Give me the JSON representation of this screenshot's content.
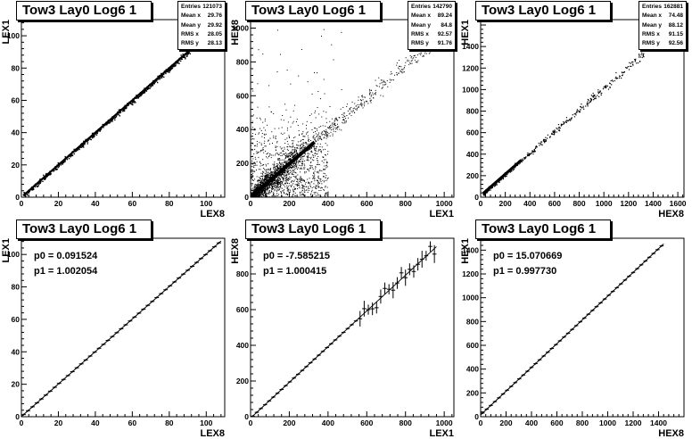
{
  "panels": [
    {
      "title": "Tow3 Lay0 Log6 1",
      "xlabel": "LEX8",
      "ylabel": "LEX1",
      "stats": [
        {
          "label": "Entries",
          "value": "121073"
        },
        {
          "label": "Mean x",
          "value": "29.76"
        },
        {
          "label": "Mean y",
          "value": "29.92"
        },
        {
          "label": "RMS x",
          "value": "28.05"
        },
        {
          "label": "RMS y",
          "value": "28.13"
        }
      ],
      "fit": []
    },
    {
      "title": "Tow3 Lay0 Log6 1",
      "xlabel": "LEX1",
      "ylabel": "HEX8",
      "stats": [
        {
          "label": "Entries",
          "value": "142790"
        },
        {
          "label": "Mean x",
          "value": "89.24"
        },
        {
          "label": "Mean y",
          "value": "84.8"
        },
        {
          "label": "RMS x",
          "value": "92.57"
        },
        {
          "label": "RMS y",
          "value": "91.76"
        }
      ],
      "fit": []
    },
    {
      "title": "Tow3 Lay0 Log6 1",
      "xlabel": "HEX8",
      "ylabel": "HEX1",
      "stats": [
        {
          "label": "Entries",
          "value": "162881"
        },
        {
          "label": "Mean x",
          "value": "74.48"
        },
        {
          "label": "Mean y",
          "value": "88.12"
        },
        {
          "label": "RMS x",
          "value": "91.15"
        },
        {
          "label": "RMS y",
          "value": "92.56"
        }
      ],
      "fit": []
    },
    {
      "title": "Tow3 Lay0 Log6 1",
      "xlabel": "LEX8",
      "ylabel": "LEX1",
      "stats": [],
      "fit": [
        {
          "label": "p0",
          "value": "0.091524"
        },
        {
          "label": "p1",
          "value": "1.002054"
        }
      ]
    },
    {
      "title": "Tow3 Lay0 Log6 1",
      "xlabel": "LEX1",
      "ylabel": "HEX8",
      "stats": [],
      "fit": [
        {
          "label": "p0",
          "value": "-7.585215"
        },
        {
          "label": "p1",
          "value": "1.000415"
        }
      ]
    },
    {
      "title": "Tow3 Lay0 Log6 1",
      "xlabel": "HEX8",
      "ylabel": "HEX1",
      "stats": [],
      "fit": [
        {
          "label": "p0",
          "value": "15.070669"
        },
        {
          "label": "p1",
          "value": "0.997730"
        }
      ]
    }
  ],
  "chart_data": [
    {
      "type": "scatter",
      "title": "Tow3 Lay0 Log6 1",
      "xlabel": "LEX8",
      "ylabel": "LEX1",
      "xlim": [
        0,
        110
      ],
      "ylim": [
        0,
        110
      ],
      "xticks": [
        0,
        20,
        40,
        60,
        80,
        100
      ],
      "yticks": [
        0,
        20,
        40,
        60,
        80,
        100
      ],
      "x": [
        0,
        20,
        40,
        60,
        80,
        100
      ],
      "y": [
        0,
        20,
        40,
        60,
        80,
        100
      ],
      "grid": false
    },
    {
      "type": "scatter",
      "title": "Tow3 Lay0 Log6 1",
      "xlabel": "LEX1",
      "ylabel": "HEX8",
      "xlim": [
        0,
        1050
      ],
      "ylim": [
        0,
        1050
      ],
      "xticks": [
        0,
        200,
        400,
        600,
        800,
        1000
      ],
      "yticks": [
        0,
        200,
        400,
        600,
        800,
        1000
      ],
      "x": [
        0,
        200,
        400,
        600,
        800,
        1000
      ],
      "y": [
        0,
        195,
        395,
        590,
        790,
        985
      ],
      "grid": false
    },
    {
      "type": "scatter",
      "title": "Tow3 Lay0 Log6 1",
      "xlabel": "HEX8",
      "ylabel": "HEX1",
      "xlim": [
        0,
        1650
      ],
      "ylim": [
        0,
        1650
      ],
      "xticks": [
        0,
        200,
        400,
        600,
        800,
        1000,
        1200,
        1400,
        1600
      ],
      "yticks": [
        0,
        200,
        400,
        600,
        800,
        1000,
        1200,
        1400
      ],
      "x": [
        0,
        400,
        800,
        1200,
        1300
      ],
      "y": [
        15,
        415,
        815,
        1212,
        1312
      ],
      "grid": false
    },
    {
      "type": "line",
      "title": "Tow3 Lay0 Log6 1",
      "xlabel": "LEX8",
      "ylabel": "LEX1",
      "xlim": [
        0,
        110
      ],
      "ylim": [
        0,
        110
      ],
      "xticks": [
        0,
        20,
        40,
        60,
        80,
        100
      ],
      "yticks": [
        0,
        20,
        40,
        60,
        80,
        100
      ],
      "x": [
        0,
        20,
        40,
        60,
        80,
        100,
        108
      ],
      "y": [
        0.09,
        20.13,
        40.17,
        60.21,
        80.26,
        100.3,
        108.3
      ],
      "fit": {
        "p0": 0.091524,
        "p1": 1.002054
      },
      "grid": false
    },
    {
      "type": "line",
      "title": "Tow3 Lay0 Log6 1",
      "xlabel": "LEX1",
      "ylabel": "HEX8",
      "xlim": [
        0,
        1050
      ],
      "ylim": [
        0,
        1000
      ],
      "xticks": [
        0,
        200,
        400,
        600,
        800,
        1000
      ],
      "yticks": [
        0,
        200,
        400,
        600,
        800
      ],
      "x": [
        0,
        200,
        400,
        600,
        800,
        960
      ],
      "y": [
        -7.6,
        192.5,
        392.6,
        592.7,
        792.7,
        952.8
      ],
      "fit": {
        "p0": -7.585215,
        "p1": 1.000415
      },
      "grid": false
    },
    {
      "type": "line",
      "title": "Tow3 Lay0 Log6 1",
      "xlabel": "HEX8",
      "ylabel": "HEX1",
      "xlim": [
        0,
        1600
      ],
      "ylim": [
        0,
        1500
      ],
      "xticks": [
        0,
        200,
        400,
        600,
        800,
        1000,
        1200,
        1400
      ],
      "yticks": [
        0,
        200,
        400,
        600,
        800,
        1000,
        1200,
        1400
      ],
      "x": [
        0,
        400,
        800,
        1200,
        1440
      ],
      "y": [
        15.1,
        414.2,
        813.3,
        1212.3,
        1451.8
      ],
      "fit": {
        "p0": 15.070669,
        "p1": 0.99773
      },
      "grid": false
    }
  ]
}
